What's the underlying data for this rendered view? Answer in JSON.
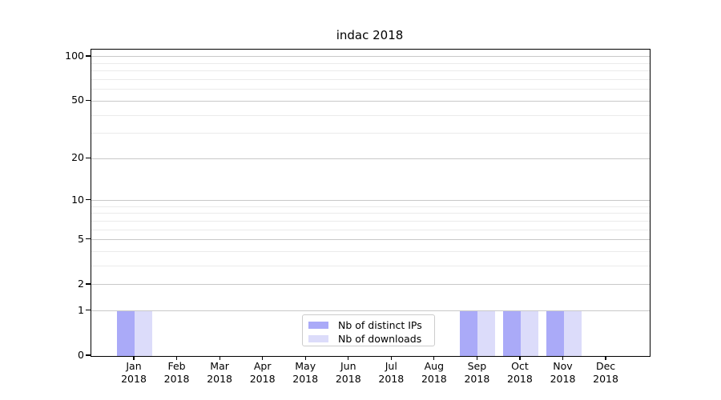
{
  "chart_data": {
    "type": "bar",
    "title": "indac 2018",
    "x_categories": [
      "Jan",
      "Feb",
      "Mar",
      "Apr",
      "May",
      "Jun",
      "Jul",
      "Aug",
      "Sep",
      "Oct",
      "Nov",
      "Dec"
    ],
    "x_year": "2018",
    "series": [
      {
        "name": "Nb of distinct IPs",
        "color": "#aaaaf8",
        "values": [
          1,
          0,
          0,
          0,
          0,
          0,
          0,
          0,
          1,
          1,
          1,
          0
        ]
      },
      {
        "name": "Nb of downloads",
        "color": "#dcdcfa",
        "values": [
          1,
          0,
          0,
          0,
          0,
          0,
          0,
          0,
          1,
          1,
          1,
          0
        ]
      }
    ],
    "y_scale": "log1p",
    "y_major_ticks": [
      0,
      1,
      2,
      5,
      10,
      20,
      50,
      100
    ],
    "y_minor_gridlines": [
      3,
      4,
      6,
      7,
      8,
      9,
      30,
      40,
      60,
      70,
      80,
      90
    ],
    "ylim": [
      0,
      112
    ],
    "grid": "horizontal",
    "legend": {
      "position": "lower center"
    },
    "colors": {
      "major_grid": "#c9c9c9",
      "minor_grid": "#ebebeb",
      "spine": "#000000",
      "text": "#000000",
      "background": "#ffffff"
    }
  }
}
